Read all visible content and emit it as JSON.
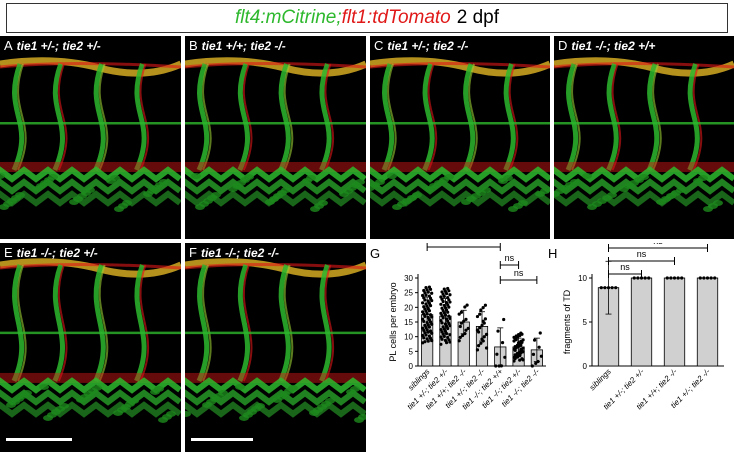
{
  "figure": {
    "title_green": "flt4:mCitrine;",
    "title_red": "flt1:tdTomato",
    "title_black": "2 dpf"
  },
  "panels": [
    {
      "letter": "A",
      "genotype": "tie1 +/-; tie2 +/-"
    },
    {
      "letter": "B",
      "genotype": "tie1 +/+; tie2 -/-"
    },
    {
      "letter": "C",
      "genotype": "tie1 +/-; tie2 -/-"
    },
    {
      "letter": "D",
      "genotype": "tie1 -/-; tie2 +/+"
    },
    {
      "letter": "E",
      "genotype": "tie1 -/-; tie2 +/-"
    },
    {
      "letter": "F",
      "genotype": "tie1 -/-; tie2 -/-"
    }
  ],
  "colors": {
    "green": "#2db82d",
    "red": "#e01818",
    "bar_fill": "#d0d0d0"
  },
  "chart_data": [
    {
      "panel": "G",
      "type": "bar",
      "ylabel": "PL cells per embryo",
      "ylim": [
        0,
        30
      ],
      "yticks": [
        0,
        5,
        10,
        15,
        20,
        25,
        30
      ],
      "categories": [
        "siblings",
        "tie1 +/-; tie2 +/-",
        "tie1 +/+; tie2 -/-",
        "tie1 +/-; tie2 -/-",
        "tie1 -/-; tie2 +/+",
        "tie1 -/-; tie2 +/-",
        "tie1 -/-; tie2 -/-"
      ],
      "values": [
        17.5,
        17,
        15,
        13.5,
        6.5,
        6.5,
        5.5
      ],
      "errors": [
        6,
        6,
        4,
        5,
        6.5,
        3,
        4
      ],
      "annotations": [
        {
          "text": "***",
          "from": 0,
          "to": 4
        },
        {
          "text": "ns",
          "from": 4,
          "to": 6
        },
        {
          "text": "ns",
          "from": 4,
          "to": 5
        }
      ]
    },
    {
      "panel": "H",
      "type": "bar",
      "ylabel": "fragments of TD",
      "ylim": [
        0,
        10
      ],
      "yticks": [
        0,
        5,
        10
      ],
      "categories": [
        "siblings",
        "tie1 +/-; tie2 +/-",
        "tie1 +/+; tie2 -/-",
        "tie1 +/-; tie2 -/-"
      ],
      "values": [
        8.9,
        10,
        10,
        10
      ],
      "errors": [
        3,
        0,
        0,
        0
      ],
      "annotations": [
        {
          "text": "ns",
          "from": 0,
          "to": 3
        },
        {
          "text": "ns",
          "from": 0,
          "to": 2
        },
        {
          "text": "ns",
          "from": 0,
          "to": 1
        }
      ]
    }
  ]
}
